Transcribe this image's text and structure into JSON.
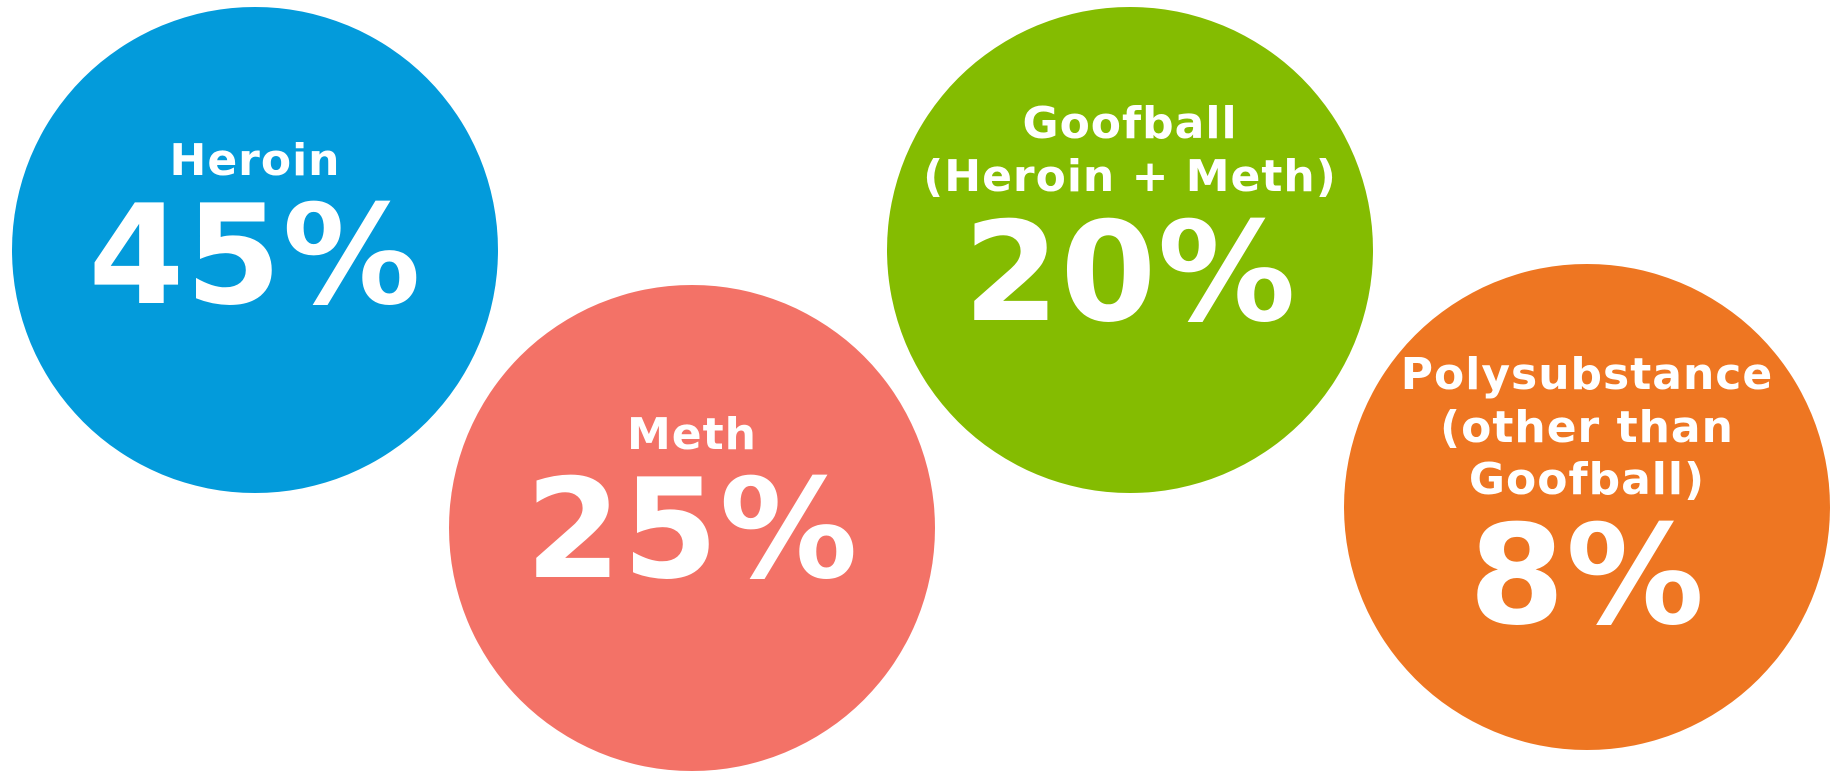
{
  "bubbles": [
    {
      "label_lines": [
        "Heroin"
      ],
      "percent": "45%",
      "value": 45,
      "color": "#039BDB"
    },
    {
      "label_lines": [
        "Meth"
      ],
      "percent": "25%",
      "value": 25,
      "color": "#F37267"
    },
    {
      "label_lines": [
        "Goofball",
        "(Heroin + Meth)"
      ],
      "percent": "20%",
      "value": 20,
      "color": "#84BC01"
    },
    {
      "label_lines": [
        "Polysubstance",
        "(other than",
        "Goofball)"
      ],
      "percent": "8%",
      "value": 8,
      "color": "#EE7622"
    }
  ]
}
